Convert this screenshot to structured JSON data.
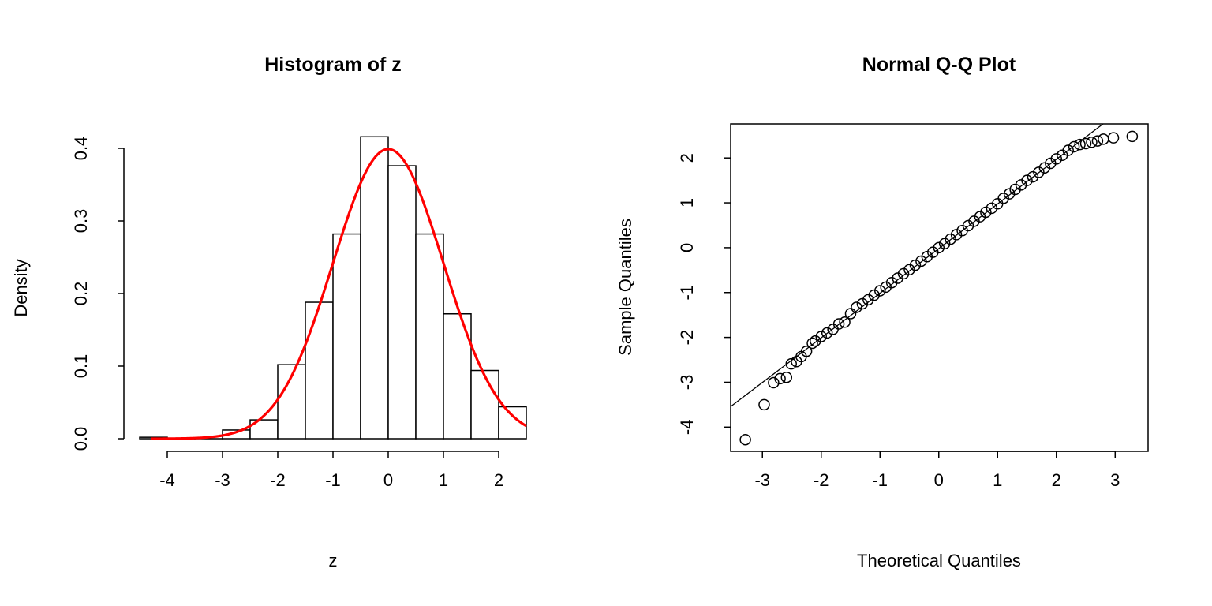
{
  "chart_data": [
    {
      "type": "bar",
      "title": "Histogram of z",
      "xlabel": "z",
      "ylabel": "Density",
      "xlim": [
        -4.5,
        2.5
      ],
      "ylim": [
        0,
        0.4
      ],
      "xticks": [
        -4,
        -3,
        -2,
        -1,
        0,
        1,
        2
      ],
      "yticks": [
        "0.0",
        "0.1",
        "0.2",
        "0.3",
        "0.4"
      ],
      "bin_edges": [
        -4.5,
        -4,
        -3.5,
        -3,
        -2.5,
        -2,
        -1.5,
        -1,
        -0.5,
        0,
        0.5,
        1,
        1.5,
        2,
        2.5
      ],
      "values": [
        0.002,
        0,
        0,
        0.012,
        0.026,
        0.102,
        0.188,
        0.282,
        0.416,
        0.376,
        0.282,
        0.172,
        0.094,
        0.044
      ],
      "overlay": {
        "type": "line",
        "name": "normal density",
        "mean": 0,
        "sd": 1,
        "x_range": [
          -4.3,
          2.5
        ],
        "color": "#ff0000"
      }
    },
    {
      "type": "scatter",
      "title": "Normal Q-Q Plot",
      "xlabel": "Theoretical Quantiles",
      "ylabel": "Sample Quantiles",
      "xlim": [
        -3.54,
        3.56
      ],
      "ylim": [
        -4.54,
        2.76
      ],
      "xticks": [
        -3,
        -2,
        -1,
        0,
        1,
        2,
        3
      ],
      "yticks": [
        -4,
        -3,
        -2,
        -1,
        0,
        1,
        2
      ],
      "reference_line": {
        "intercept": -0.02,
        "slope": 0.995
      },
      "x": [
        -3.29,
        -2.97,
        -2.81,
        -2.7,
        -2.59,
        -2.51,
        -2.42,
        -2.34,
        -2.25,
        -2.15,
        -2.1,
        -2.0,
        -1.9,
        -1.8,
        -1.7,
        -1.6,
        -1.5,
        -1.4,
        -1.3,
        -1.2,
        -1.1,
        -1.0,
        -0.9,
        -0.8,
        -0.7,
        -0.6,
        -0.5,
        -0.4,
        -0.3,
        -0.2,
        -0.1,
        0,
        0.1,
        0.2,
        0.3,
        0.4,
        0.5,
        0.6,
        0.7,
        0.8,
        0.9,
        1.0,
        1.1,
        1.2,
        1.3,
        1.4,
        1.5,
        1.6,
        1.7,
        1.8,
        1.9,
        2.0,
        2.1,
        2.2,
        2.3,
        2.4,
        2.5,
        2.6,
        2.7,
        2.8,
        2.97,
        3.29
      ],
      "y": [
        -4.28,
        -3.5,
        -3.01,
        -2.92,
        -2.89,
        -2.59,
        -2.54,
        -2.43,
        -2.31,
        -2.13,
        -2.08,
        -1.98,
        -1.9,
        -1.82,
        -1.7,
        -1.66,
        -1.47,
        -1.33,
        -1.25,
        -1.16,
        -1.06,
        -0.96,
        -0.88,
        -0.78,
        -0.68,
        -0.58,
        -0.49,
        -0.39,
        -0.3,
        -0.2,
        -0.1,
        0,
        0.09,
        0.19,
        0.29,
        0.38,
        0.49,
        0.59,
        0.69,
        0.79,
        0.88,
        0.98,
        1.1,
        1.2,
        1.3,
        1.4,
        1.5,
        1.58,
        1.68,
        1.78,
        1.88,
        1.98,
        2.06,
        2.17,
        2.25,
        2.3,
        2.32,
        2.35,
        2.38,
        2.42,
        2.45,
        2.48
      ]
    }
  ]
}
